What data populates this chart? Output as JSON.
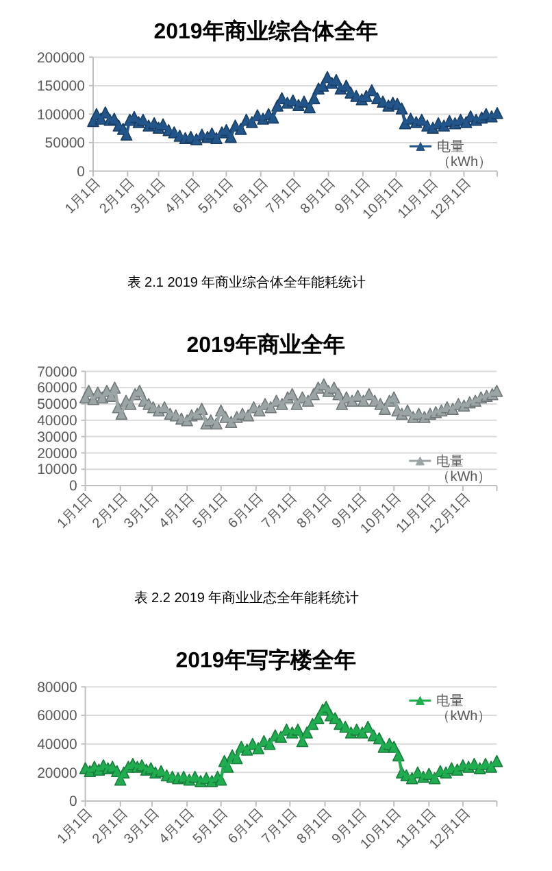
{
  "chart_data": [
    {
      "type": "line",
      "title": "2019年商业综合体全年",
      "annotations": [
        "表 2.1 2019 年商业综合体全年能耗统计"
      ],
      "x": [
        "2019-01-01",
        "2019-01-04",
        "2019-01-08",
        "2019-01-12",
        "2019-01-16",
        "2019-01-20",
        "2019-01-24",
        "2019-01-28",
        "2019-01-31",
        "2019-02-03",
        "2019-02-07",
        "2019-02-11",
        "2019-02-15",
        "2019-02-20",
        "2019-02-25",
        "2019-03-01",
        "2019-03-05",
        "2019-03-10",
        "2019-03-15",
        "2019-03-20",
        "2019-03-25",
        "2019-03-30",
        "2019-04-04",
        "2019-04-09",
        "2019-04-14",
        "2019-04-18",
        "2019-04-22",
        "2019-04-27",
        "2019-05-01",
        "2019-05-05",
        "2019-05-09",
        "2019-05-14",
        "2019-05-19",
        "2019-05-24",
        "2019-05-29",
        "2019-06-03",
        "2019-06-08",
        "2019-06-12",
        "2019-06-16",
        "2019-06-20",
        "2019-06-25",
        "2019-06-30",
        "2019-07-05",
        "2019-07-10",
        "2019-07-15",
        "2019-07-19",
        "2019-07-23",
        "2019-07-27",
        "2019-07-31",
        "2019-08-04",
        "2019-08-08",
        "2019-08-12",
        "2019-08-17",
        "2019-08-21",
        "2019-08-26",
        "2019-08-31",
        "2019-09-04",
        "2019-09-09",
        "2019-09-14",
        "2019-09-19",
        "2019-09-24",
        "2019-09-28",
        "2019-10-02",
        "2019-10-06",
        "2019-10-09",
        "2019-10-14",
        "2019-10-19",
        "2019-10-24",
        "2019-10-29",
        "2019-11-03",
        "2019-11-08",
        "2019-11-13",
        "2019-11-18",
        "2019-11-23",
        "2019-11-28",
        "2019-12-03",
        "2019-12-07",
        "2019-12-12",
        "2019-12-17",
        "2019-12-21",
        "2019-12-26",
        "2019-12-31"
      ],
      "series": [
        {
          "name": "电量（kWh）",
          "color": "#22558a",
          "values": [
            88000,
            100000,
            92000,
            103000,
            90000,
            92000,
            80000,
            74000,
            64000,
            90000,
            95000,
            86000,
            90000,
            80000,
            84000,
            76000,
            82000,
            72000,
            68000,
            62000,
            58000,
            60000,
            56000,
            64000,
            60000,
            66000,
            58000,
            68000,
            72000,
            60000,
            80000,
            74000,
            90000,
            86000,
            98000,
            92000,
            100000,
            94000,
            115000,
            128000,
            120000,
            124000,
            116000,
            122000,
            112000,
            128000,
            145000,
            150000,
            165000,
            155000,
            160000,
            145000,
            150000,
            138000,
            132000,
            126000,
            132000,
            142000,
            128000,
            122000,
            115000,
            120000,
            118000,
            110000,
            84000,
            92000,
            86000,
            90000,
            80000,
            76000,
            84000,
            80000,
            88000,
            84000,
            90000,
            86000,
            96000,
            90000,
            94000,
            100000,
            96000,
            102000
          ]
        }
      ],
      "xlim": [
        "2019-01-01",
        "2019-12-31"
      ],
      "xticks": [
        {
          "value": "2019-01-01",
          "label": "1月1日"
        },
        {
          "value": "2019-02-01",
          "label": "2月1日"
        },
        {
          "value": "2019-03-01",
          "label": "3月1日"
        },
        {
          "value": "2019-04-01",
          "label": "4月1日"
        },
        {
          "value": "2019-05-01",
          "label": "5月1日"
        },
        {
          "value": "2019-06-01",
          "label": "6月1日"
        },
        {
          "value": "2019-07-01",
          "label": "7月1日"
        },
        {
          "value": "2019-08-01",
          "label": "8月1日"
        },
        {
          "value": "2019-09-01",
          "label": "9月1日"
        },
        {
          "value": "2019-10-01",
          "label": "10月1日"
        },
        {
          "value": "2019-11-01",
          "label": "11月1日"
        },
        {
          "value": "2019-12-01",
          "label": "12月1日"
        },
        {
          "value": "2019-12-31",
          "label": null
        }
      ],
      "ylim": [
        0,
        200000
      ],
      "yticks": [
        0,
        50000,
        100000,
        150000,
        200000
      ],
      "grid": "y",
      "legend": "bottom right",
      "marker": "triangle"
    },
    {
      "type": "line",
      "title": "2019年商业全年",
      "annotations": [
        "表 2.2 2019 年商业业态全年能耗统计"
      ],
      "x": [
        "2019-01-01",
        "2019-01-04",
        "2019-01-08",
        "2019-01-12",
        "2019-01-16",
        "2019-01-20",
        "2019-01-24",
        "2019-01-27",
        "2019-01-30",
        "2019-02-02",
        "2019-02-06",
        "2019-02-10",
        "2019-02-14",
        "2019-02-18",
        "2019-02-22",
        "2019-02-26",
        "2019-03-02",
        "2019-03-07",
        "2019-03-12",
        "2019-03-17",
        "2019-03-22",
        "2019-03-27",
        "2019-04-01",
        "2019-04-05",
        "2019-04-10",
        "2019-04-14",
        "2019-04-18",
        "2019-04-22",
        "2019-04-27",
        "2019-05-01",
        "2019-05-05",
        "2019-05-10",
        "2019-05-15",
        "2019-05-20",
        "2019-05-25",
        "2019-05-30",
        "2019-06-04",
        "2019-06-09",
        "2019-06-14",
        "2019-06-19",
        "2019-06-24",
        "2019-06-29",
        "2019-07-03",
        "2019-07-07",
        "2019-07-12",
        "2019-07-17",
        "2019-07-22",
        "2019-07-26",
        "2019-07-31",
        "2019-08-04",
        "2019-08-09",
        "2019-08-13",
        "2019-08-16",
        "2019-08-20",
        "2019-08-25",
        "2019-08-30",
        "2019-09-04",
        "2019-09-09",
        "2019-09-14",
        "2019-09-19",
        "2019-09-23",
        "2019-09-27",
        "2019-10-01",
        "2019-10-04",
        "2019-10-08",
        "2019-10-13",
        "2019-10-18",
        "2019-10-23",
        "2019-10-28",
        "2019-11-02",
        "2019-11-07",
        "2019-11-12",
        "2019-11-17",
        "2019-11-22",
        "2019-11-27",
        "2019-12-02",
        "2019-12-07",
        "2019-12-12",
        "2019-12-17",
        "2019-12-22",
        "2019-12-27",
        "2019-12-31"
      ],
      "series": [
        {
          "name": "电量（kWh）",
          "color": "#9ba5a6",
          "values": [
            54000,
            58000,
            53000,
            57000,
            54000,
            58000,
            55000,
            60000,
            48000,
            44000,
            52000,
            50000,
            56000,
            58000,
            52000,
            50000,
            48000,
            46000,
            48000,
            44000,
            43000,
            41000,
            40000,
            43000,
            44000,
            47000,
            38000,
            40000,
            38000,
            46000,
            42000,
            39000,
            42000,
            44000,
            43000,
            48000,
            46000,
            50000,
            48000,
            52000,
            50000,
            54000,
            56000,
            50000,
            54000,
            52000,
            56000,
            60000,
            62000,
            58000,
            60000,
            56000,
            50000,
            54000,
            52000,
            55000,
            52000,
            56000,
            52000,
            50000,
            47000,
            52000,
            54000,
            46000,
            44000,
            46000,
            42000,
            44000,
            42000,
            44000,
            45000,
            46000,
            48000,
            47000,
            50000,
            49000,
            51000,
            52000,
            54000,
            55000,
            56000,
            58000
          ]
        }
      ],
      "xlim": [
        "2019-01-01",
        "2019-12-31"
      ],
      "xticks": [
        {
          "value": "2019-01-01",
          "label": "1月1日"
        },
        {
          "value": "2019-02-01",
          "label": "2月1日"
        },
        {
          "value": "2019-03-01",
          "label": "3月1日"
        },
        {
          "value": "2019-04-01",
          "label": "4月1日"
        },
        {
          "value": "2019-05-01",
          "label": "5月1日"
        },
        {
          "value": "2019-06-01",
          "label": "6月1日"
        },
        {
          "value": "2019-07-01",
          "label": "7月1日"
        },
        {
          "value": "2019-08-01",
          "label": "8月1日"
        },
        {
          "value": "2019-09-01",
          "label": "9月1日"
        },
        {
          "value": "2019-10-01",
          "label": "10月1日"
        },
        {
          "value": "2019-11-01",
          "label": "11月1日"
        },
        {
          "value": "2019-12-01",
          "label": "12月1日"
        },
        {
          "value": "2019-12-31",
          "label": null
        }
      ],
      "ylim": [
        0,
        70000
      ],
      "yticks": [
        0,
        10000,
        20000,
        30000,
        40000,
        50000,
        60000,
        70000
      ],
      "grid": "y",
      "legend": "bottom right",
      "marker": "triangle"
    },
    {
      "type": "line",
      "title": "2019年写字楼全年",
      "x": [
        "2019-01-01",
        "2019-01-05",
        "2019-01-09",
        "2019-01-13",
        "2019-01-17",
        "2019-01-21",
        "2019-01-25",
        "2019-01-29",
        "2019-02-01",
        "2019-02-04",
        "2019-02-08",
        "2019-02-12",
        "2019-02-16",
        "2019-02-20",
        "2019-02-24",
        "2019-02-28",
        "2019-03-04",
        "2019-03-09",
        "2019-03-14",
        "2019-03-19",
        "2019-03-24",
        "2019-03-29",
        "2019-04-03",
        "2019-04-08",
        "2019-04-13",
        "2019-04-18",
        "2019-04-23",
        "2019-04-28",
        "2019-05-01",
        "2019-05-04",
        "2019-05-07",
        "2019-05-11",
        "2019-05-15",
        "2019-05-19",
        "2019-05-24",
        "2019-05-29",
        "2019-06-03",
        "2019-06-08",
        "2019-06-13",
        "2019-06-18",
        "2019-06-23",
        "2019-06-28",
        "2019-07-03",
        "2019-07-08",
        "2019-07-12",
        "2019-07-16",
        "2019-07-21",
        "2019-07-26",
        "2019-07-30",
        "2019-08-02",
        "2019-08-06",
        "2019-08-10",
        "2019-08-14",
        "2019-08-19",
        "2019-08-24",
        "2019-08-29",
        "2019-09-03",
        "2019-09-08",
        "2019-09-13",
        "2019-09-18",
        "2019-09-22",
        "2019-09-27",
        "2019-10-01",
        "2019-10-05",
        "2019-10-08",
        "2019-10-12",
        "2019-10-17",
        "2019-10-22",
        "2019-10-27",
        "2019-11-01",
        "2019-11-06",
        "2019-11-11",
        "2019-11-16",
        "2019-11-21",
        "2019-11-26",
        "2019-12-01",
        "2019-12-06",
        "2019-12-11",
        "2019-12-16",
        "2019-12-21",
        "2019-12-26",
        "2019-12-31"
      ],
      "series": [
        {
          "name": "电量（kWh）",
          "color": "#20ad50",
          "values": [
            23000,
            21000,
            24000,
            22000,
            25000,
            23000,
            24000,
            21000,
            15000,
            20000,
            24000,
            26000,
            24000,
            25000,
            22000,
            23000,
            20000,
            21000,
            18000,
            17000,
            16000,
            17000,
            15000,
            17000,
            14000,
            16000,
            14000,
            17000,
            15000,
            28000,
            24000,
            32000,
            30000,
            38000,
            36000,
            40000,
            37000,
            42000,
            40000,
            46000,
            45000,
            50000,
            48000,
            50000,
            42000,
            48000,
            54000,
            58000,
            64000,
            66000,
            60000,
            58000,
            54000,
            52000,
            48000,
            50000,
            48000,
            52000,
            46000,
            44000,
            38000,
            40000,
            38000,
            32000,
            20000,
            18000,
            16000,
            20000,
            17000,
            19000,
            16000,
            21000,
            20000,
            23000,
            22000,
            25000,
            24000,
            26000,
            23000,
            26000,
            24000,
            28000
          ]
        }
      ],
      "xlim": [
        "2019-01-01",
        "2019-12-31"
      ],
      "xticks": [
        {
          "value": "2019-01-01",
          "label": "1月1日"
        },
        {
          "value": "2019-02-01",
          "label": "2月1日"
        },
        {
          "value": "2019-03-01",
          "label": "3月1日"
        },
        {
          "value": "2019-04-01",
          "label": "4月1日"
        },
        {
          "value": "2019-05-01",
          "label": "5月1日"
        },
        {
          "value": "2019-06-01",
          "label": "6月1日"
        },
        {
          "value": "2019-07-01",
          "label": "7月1日"
        },
        {
          "value": "2019-08-01",
          "label": "8月1日"
        },
        {
          "value": "2019-09-01",
          "label": "9月1日"
        },
        {
          "value": "2019-10-01",
          "label": "10月1日"
        },
        {
          "value": "2019-11-01",
          "label": "11月1日"
        },
        {
          "value": "2019-12-01",
          "label": "12月1日"
        },
        {
          "value": "2019-12-31",
          "label": null
        }
      ],
      "ylim": [
        0,
        80000
      ],
      "yticks": [
        0,
        20000,
        40000,
        60000,
        80000
      ],
      "grid": "y",
      "legend": "top right",
      "marker": "triangle"
    }
  ]
}
